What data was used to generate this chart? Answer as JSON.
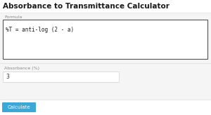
{
  "title": "Absorbance to Transmittance Calculator",
  "title_fontsize": 7.5,
  "title_color": "#1a1a1a",
  "white": "#ffffff",
  "page_bg": "#ffffff",
  "section_bg": "#f5f5f5",
  "border_color": "#d0d0d0",
  "dark_border": "#555555",
  "formula_label": "Formula",
  "formula_text": "%T = anti-log (2 - a)",
  "formula_font": 5.5,
  "input_label": "Absorbance (%)",
  "input_value": "3",
  "button_text": "Calculate",
  "button_color": "#3ba8d8",
  "button_text_color": "#ffffff",
  "label_color": "#888888",
  "label_fontsize": 4.5,
  "input_fontsize": 5.5,
  "button_fontsize": 5.0
}
